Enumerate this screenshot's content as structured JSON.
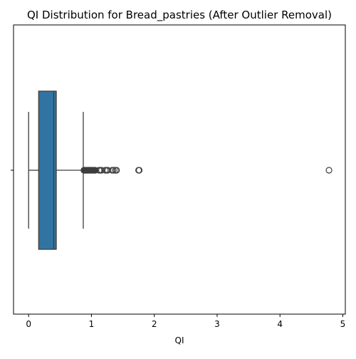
{
  "chart_data": {
    "type": "boxplot",
    "title": "QI Distribution for Bread_pastries (After Outlier Removal)",
    "xlabel": "QI",
    "ylabel": "",
    "orientation": "horizontal",
    "xlim": [
      -0.24,
      5.04
    ],
    "x_ticks": [
      0,
      1,
      2,
      3,
      4,
      5
    ],
    "x_tick_labels": [
      "0",
      "1",
      "2",
      "3",
      "4",
      "5"
    ],
    "grid": false,
    "box": {
      "whisker_low": 0.0,
      "q1": 0.16,
      "median": 0.4,
      "q3": 0.44,
      "whisker_high": 0.87,
      "fill_color": "#3274a1",
      "line_color": "#3d3d3d"
    },
    "outliers": [
      0.88,
      0.89,
      0.9,
      0.91,
      0.92,
      0.93,
      0.94,
      0.95,
      0.96,
      0.97,
      0.98,
      0.99,
      1.0,
      1.01,
      1.02,
      1.03,
      1.04,
      1.05,
      1.06,
      1.12,
      1.14,
      1.16,
      1.22,
      1.24,
      1.26,
      1.33,
      1.35,
      1.38,
      1.4,
      1.75,
      1.76,
      4.78
    ]
  }
}
